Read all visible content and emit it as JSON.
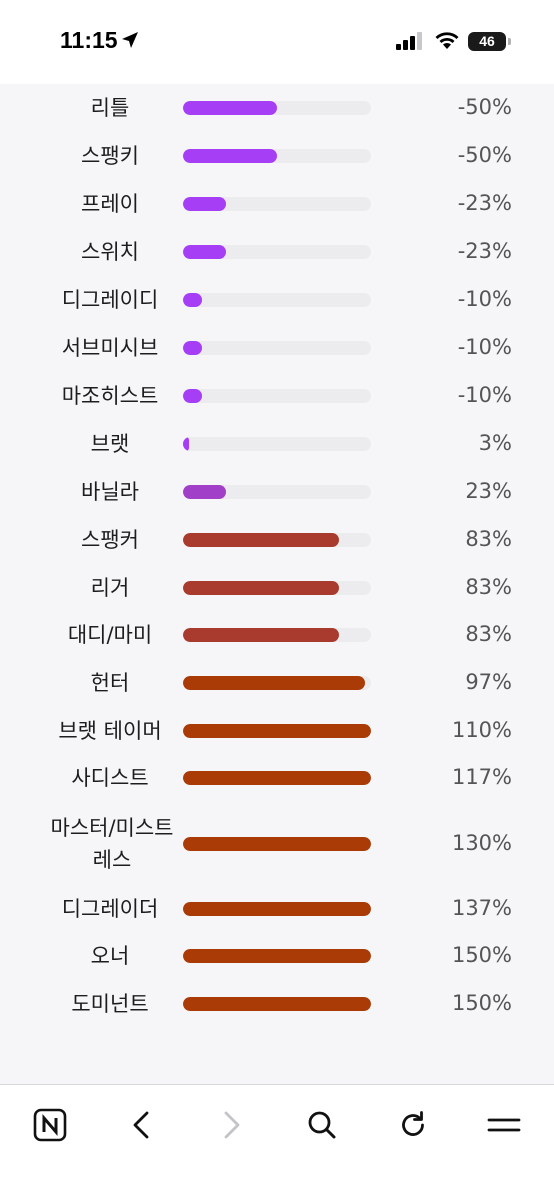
{
  "status_bar": {
    "time": "11:15",
    "battery": "46",
    "icons": [
      "location-arrow-icon",
      "cellular-signal-icon",
      "wifi-icon",
      "battery-icon"
    ]
  },
  "colors": {
    "purple": "#a63ef5",
    "violet": "#a23fc8",
    "rust": "#a83b2e",
    "orange": "#aa3a06",
    "track": "#ececee"
  },
  "rows": [
    {
      "label": "리틀",
      "value": -50,
      "display": "-50%",
      "color": "purple"
    },
    {
      "label": "스팽키",
      "value": -50,
      "display": "-50%",
      "color": "purple"
    },
    {
      "label": "프레이",
      "value": -23,
      "display": "-23%",
      "color": "purple"
    },
    {
      "label": "스위치",
      "value": -23,
      "display": "-23%",
      "color": "purple"
    },
    {
      "label": "디그레이디",
      "value": -10,
      "display": "-10%",
      "color": "purple"
    },
    {
      "label": "서브미시브",
      "value": -10,
      "display": "-10%",
      "color": "purple"
    },
    {
      "label": "마조히스트",
      "value": -10,
      "display": "-10%",
      "color": "purple"
    },
    {
      "label": "브랫",
      "value": 3,
      "display": "3%",
      "color": "purple"
    },
    {
      "label": "바닐라",
      "value": 23,
      "display": "23%",
      "color": "violet"
    },
    {
      "label": "스팽커",
      "value": 83,
      "display": "83%",
      "color": "rust"
    },
    {
      "label": "리거",
      "value": 83,
      "display": "83%",
      "color": "rust"
    },
    {
      "label": "대디/마미",
      "value": 83,
      "display": "83%",
      "color": "rust"
    },
    {
      "label": "헌터",
      "value": 97,
      "display": "97%",
      "color": "orange"
    },
    {
      "label": "브랫 테이머",
      "value": 110,
      "display": "110%",
      "color": "orange"
    },
    {
      "label": "사디스트",
      "value": 117,
      "display": "117%",
      "color": "orange"
    },
    {
      "label": "마스터/미스트레스",
      "value": 130,
      "display": "130%",
      "color": "orange"
    },
    {
      "label": "디그레이더",
      "value": 137,
      "display": "137%",
      "color": "orange"
    },
    {
      "label": "오너",
      "value": 150,
      "display": "150%",
      "color": "orange"
    },
    {
      "label": "도미넌트",
      "value": 150,
      "display": "150%",
      "color": "orange"
    }
  ],
  "bottom_nav": [
    {
      "name": "naver-home-icon"
    },
    {
      "name": "back-icon"
    },
    {
      "name": "forward-icon",
      "disabled": true
    },
    {
      "name": "search-icon"
    },
    {
      "name": "reload-icon"
    },
    {
      "name": "menu-icon"
    }
  ]
}
